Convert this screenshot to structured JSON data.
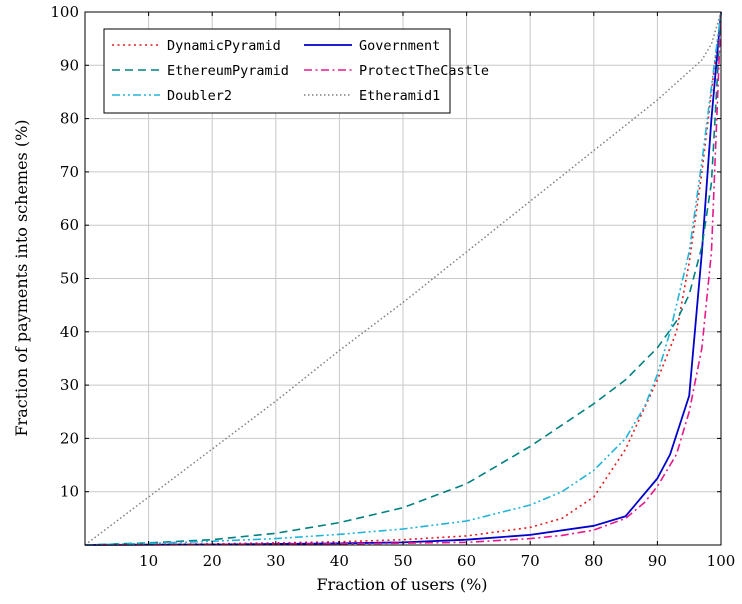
{
  "chart_data": {
    "type": "line",
    "xlabel": "Fraction of users (%)",
    "ylabel": "Fraction of payments into schemes (%)",
    "xlim": [
      0,
      100
    ],
    "ylim": [
      0,
      100
    ],
    "x_ticks": [
      10,
      20,
      30,
      40,
      50,
      60,
      70,
      80,
      90,
      100
    ],
    "y_ticks": [
      10,
      20,
      30,
      40,
      50,
      60,
      70,
      80,
      90,
      100
    ],
    "grid": true,
    "legend_placement": "top-left",
    "series": [
      {
        "name": "DynamicPyramid",
        "color": "#e41a1c",
        "dash": "dotted",
        "points": [
          [
            0,
            0
          ],
          [
            20,
            0.2
          ],
          [
            40,
            0.6
          ],
          [
            50,
            1.0
          ],
          [
            60,
            1.7
          ],
          [
            70,
            3.3
          ],
          [
            75,
            5.0
          ],
          [
            80,
            9.0
          ],
          [
            85,
            18.0
          ],
          [
            90,
            31.0
          ],
          [
            93,
            40.0
          ],
          [
            95,
            53.0
          ],
          [
            97,
            70.0
          ],
          [
            98.5,
            85.0
          ],
          [
            100,
            100
          ]
        ]
      },
      {
        "name": "Government",
        "color": "#0000cc",
        "dash": "solid",
        "points": [
          [
            0,
            0
          ],
          [
            20,
            0.1
          ],
          [
            40,
            0.3
          ],
          [
            50,
            0.5
          ],
          [
            60,
            1.0
          ],
          [
            70,
            1.9
          ],
          [
            80,
            3.6
          ],
          [
            85,
            5.4
          ],
          [
            90,
            12.5
          ],
          [
            92,
            17.0
          ],
          [
            95,
            28.0
          ],
          [
            97,
            55.0
          ],
          [
            98.5,
            80.0
          ],
          [
            100,
            100
          ]
        ]
      },
      {
        "name": "EthereumPyramid",
        "color": "#008080",
        "dash": "dashed",
        "points": [
          [
            0,
            0
          ],
          [
            10,
            0.4
          ],
          [
            20,
            1.0
          ],
          [
            30,
            2.2
          ],
          [
            40,
            4.2
          ],
          [
            50,
            7.0
          ],
          [
            60,
            11.5
          ],
          [
            70,
            18.5
          ],
          [
            80,
            26.5
          ],
          [
            85,
            31.0
          ],
          [
            90,
            37.0
          ],
          [
            93,
            42.0
          ],
          [
            95,
            47.0
          ],
          [
            97,
            56.0
          ],
          [
            98.5,
            68.0
          ],
          [
            100,
            100
          ]
        ]
      },
      {
        "name": "ProtectTheCastle",
        "color": "#e6198c",
        "dash": "dashdot",
        "points": [
          [
            0,
            0
          ],
          [
            20,
            0.1
          ],
          [
            40,
            0.2
          ],
          [
            60,
            0.5
          ],
          [
            70,
            1.2
          ],
          [
            75,
            1.8
          ],
          [
            80,
            2.8
          ],
          [
            85,
            5.0
          ],
          [
            88,
            8.0
          ],
          [
            90,
            11.0
          ],
          [
            93,
            17.0
          ],
          [
            95,
            25.0
          ],
          [
            97,
            37.0
          ],
          [
            98.5,
            55.0
          ],
          [
            100,
            100
          ]
        ]
      },
      {
        "name": "Doubler2",
        "color": "#22b4d8",
        "dash": "dashdotdot",
        "points": [
          [
            0,
            0
          ],
          [
            10,
            0.3
          ],
          [
            20,
            0.7
          ],
          [
            30,
            1.2
          ],
          [
            40,
            2.0
          ],
          [
            50,
            3.0
          ],
          [
            60,
            4.5
          ],
          [
            70,
            7.5
          ],
          [
            75,
            10.0
          ],
          [
            80,
            14.0
          ],
          [
            85,
            20.0
          ],
          [
            88,
            26.0
          ],
          [
            90,
            32.0
          ],
          [
            92,
            40.0
          ],
          [
            95,
            55.0
          ],
          [
            97,
            72.0
          ],
          [
            98.5,
            86.0
          ],
          [
            100,
            100
          ]
        ]
      },
      {
        "name": "Etheramid1",
        "color": "#808080",
        "dash": "fine-dotted",
        "points": [
          [
            0,
            0
          ],
          [
            10,
            9.0
          ],
          [
            20,
            18.0
          ],
          [
            30,
            27.0
          ],
          [
            40,
            36.5
          ],
          [
            50,
            45.5
          ],
          [
            60,
            55.0
          ],
          [
            70,
            64.5
          ],
          [
            80,
            74.0
          ],
          [
            90,
            83.5
          ],
          [
            97,
            91.0
          ],
          [
            98.5,
            94.0
          ],
          [
            100,
            100
          ]
        ]
      }
    ]
  }
}
